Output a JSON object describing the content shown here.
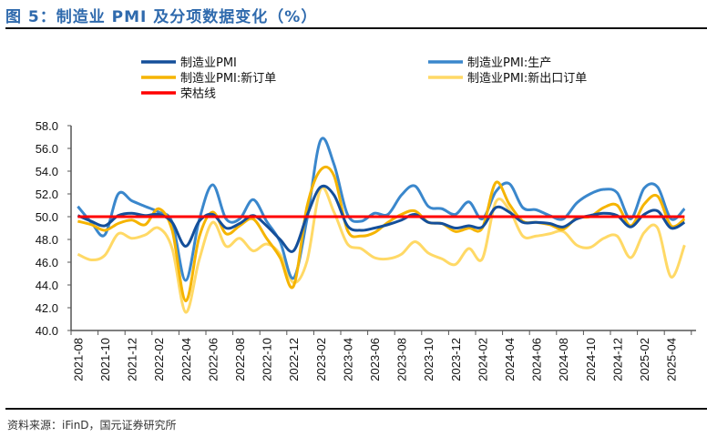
{
  "title": "图 5：制造业 PMI 及分项数据变化（%）",
  "source": "资料来源：iFinD，国元证券研究所",
  "chart_data": {
    "type": "line",
    "title": "图 5：制造业 PMI 及分项数据变化（%）",
    "xlabel": "",
    "ylabel": "",
    "ylim": [
      40,
      58
    ],
    "yticks": [
      "40.0",
      "42.0",
      "44.0",
      "46.0",
      "48.0",
      "50.0",
      "52.0",
      "54.0",
      "56.0",
      "58.0"
    ],
    "grid": false,
    "legend": "top",
    "x": [
      "2021-08",
      "2021-09",
      "2021-10",
      "2021-11",
      "2021-12",
      "2022-01",
      "2022-02",
      "2022-03",
      "2022-04",
      "2022-05",
      "2022-06",
      "2022-07",
      "2022-08",
      "2022-09",
      "2022-10",
      "2022-11",
      "2022-12",
      "2023-01",
      "2023-02",
      "2023-03",
      "2023-04",
      "2023-05",
      "2023-06",
      "2023-07",
      "2023-08",
      "2023-09",
      "2023-10",
      "2023-11",
      "2023-12",
      "2024-01",
      "2024-02",
      "2024-03",
      "2024-04",
      "2024-05",
      "2024-06",
      "2024-07",
      "2024-08",
      "2024-09",
      "2024-10",
      "2024-11",
      "2024-12",
      "2025-01",
      "2025-02",
      "2025-03",
      "2025-04",
      "2025-05"
    ],
    "xtick_labels": [
      "2021-08",
      "2021-10",
      "2021-12",
      "2022-02",
      "2022-04",
      "2022-06",
      "2022-08",
      "2022-10",
      "2022-12",
      "2023-02",
      "2023-04",
      "2023-06",
      "2023-08",
      "2023-10",
      "2023-12",
      "2024-02",
      "2024-04",
      "2024-06",
      "2024-08",
      "2024-10",
      "2024-12",
      "2025-02",
      "2025-04"
    ],
    "series": [
      {
        "name": "制造业PMI:新出口订单",
        "color": "#ffd966",
        "values": [
          46.7,
          46.2,
          46.6,
          48.5,
          48.1,
          48.4,
          49.0,
          47.2,
          41.6,
          46.2,
          49.5,
          47.4,
          48.1,
          47.0,
          47.6,
          46.7,
          44.2,
          46.1,
          52.4,
          50.4,
          47.6,
          47.2,
          46.4,
          46.3,
          46.7,
          47.8,
          46.8,
          46.3,
          45.8,
          47.2,
          46.3,
          51.3,
          50.6,
          48.3,
          48.3,
          48.5,
          48.7,
          47.5,
          47.3,
          48.1,
          48.3,
          46.4,
          48.6,
          49.0,
          44.7,
          47.5
        ]
      },
      {
        "name": "制造业PMI:生产",
        "color": "#3a87cc",
        "values": [
          50.9,
          49.5,
          48.4,
          52.0,
          51.4,
          50.9,
          50.4,
          49.5,
          44.4,
          49.7,
          52.8,
          49.8,
          49.8,
          51.5,
          49.6,
          47.8,
          44.6,
          49.8,
          56.7,
          54.6,
          50.2,
          49.6,
          50.3,
          50.2,
          51.9,
          52.7,
          50.9,
          50.7,
          50.2,
          51.3,
          49.8,
          52.2,
          52.9,
          50.8,
          50.6,
          50.1,
          49.8,
          51.2,
          52.0,
          52.4,
          52.1,
          49.8,
          52.5,
          52.6,
          49.8,
          50.7
        ]
      },
      {
        "name": "制造业PMI:新订单",
        "color": "#f5b400",
        "values": [
          49.6,
          49.3,
          48.8,
          49.4,
          49.7,
          49.3,
          50.7,
          48.8,
          42.6,
          48.2,
          50.4,
          48.5,
          49.2,
          49.8,
          48.1,
          46.4,
          43.9,
          50.9,
          54.1,
          53.6,
          48.8,
          48.3,
          48.6,
          49.5,
          50.2,
          50.5,
          49.5,
          49.4,
          48.7,
          49.0,
          49.0,
          53.0,
          51.1,
          49.6,
          49.5,
          49.3,
          48.9,
          49.9,
          50.0,
          50.8,
          51.0,
          49.2,
          51.1,
          51.8,
          49.2,
          49.8
        ]
      },
      {
        "name": "制造业PMI",
        "color": "#144f9a",
        "values": [
          50.1,
          49.6,
          49.2,
          50.1,
          50.3,
          50.1,
          50.2,
          49.5,
          47.4,
          49.6,
          50.2,
          49.0,
          49.4,
          50.1,
          49.2,
          48.0,
          47.0,
          50.1,
          52.6,
          51.9,
          49.2,
          48.8,
          49.0,
          49.3,
          49.7,
          50.2,
          49.5,
          49.4,
          49.0,
          49.2,
          49.1,
          50.8,
          50.4,
          49.5,
          49.5,
          49.4,
          49.1,
          49.8,
          50.1,
          50.3,
          50.1,
          49.1,
          50.2,
          50.5,
          49.0,
          49.5
        ]
      },
      {
        "name": "荣枯线",
        "color": "#ff0000",
        "values": [
          50,
          50,
          50,
          50,
          50,
          50,
          50,
          50,
          50,
          50,
          50,
          50,
          50,
          50,
          50,
          50,
          50,
          50,
          50,
          50,
          50,
          50,
          50,
          50,
          50,
          50,
          50,
          50,
          50,
          50,
          50,
          50,
          50,
          50,
          50,
          50,
          50,
          50,
          50,
          50,
          50,
          50,
          50,
          50,
          50,
          50
        ]
      }
    ],
    "legend_entries": [
      {
        "label": "制造业PMI",
        "color": "#144f9a"
      },
      {
        "label": "制造业PMI:生产",
        "color": "#3a87cc"
      },
      {
        "label": "制造业PMI:新订单",
        "color": "#f5b400"
      },
      {
        "label": "制造业PMI:新出口订单",
        "color": "#ffd966"
      },
      {
        "label": "荣枯线",
        "color": "#ff0000"
      }
    ]
  }
}
